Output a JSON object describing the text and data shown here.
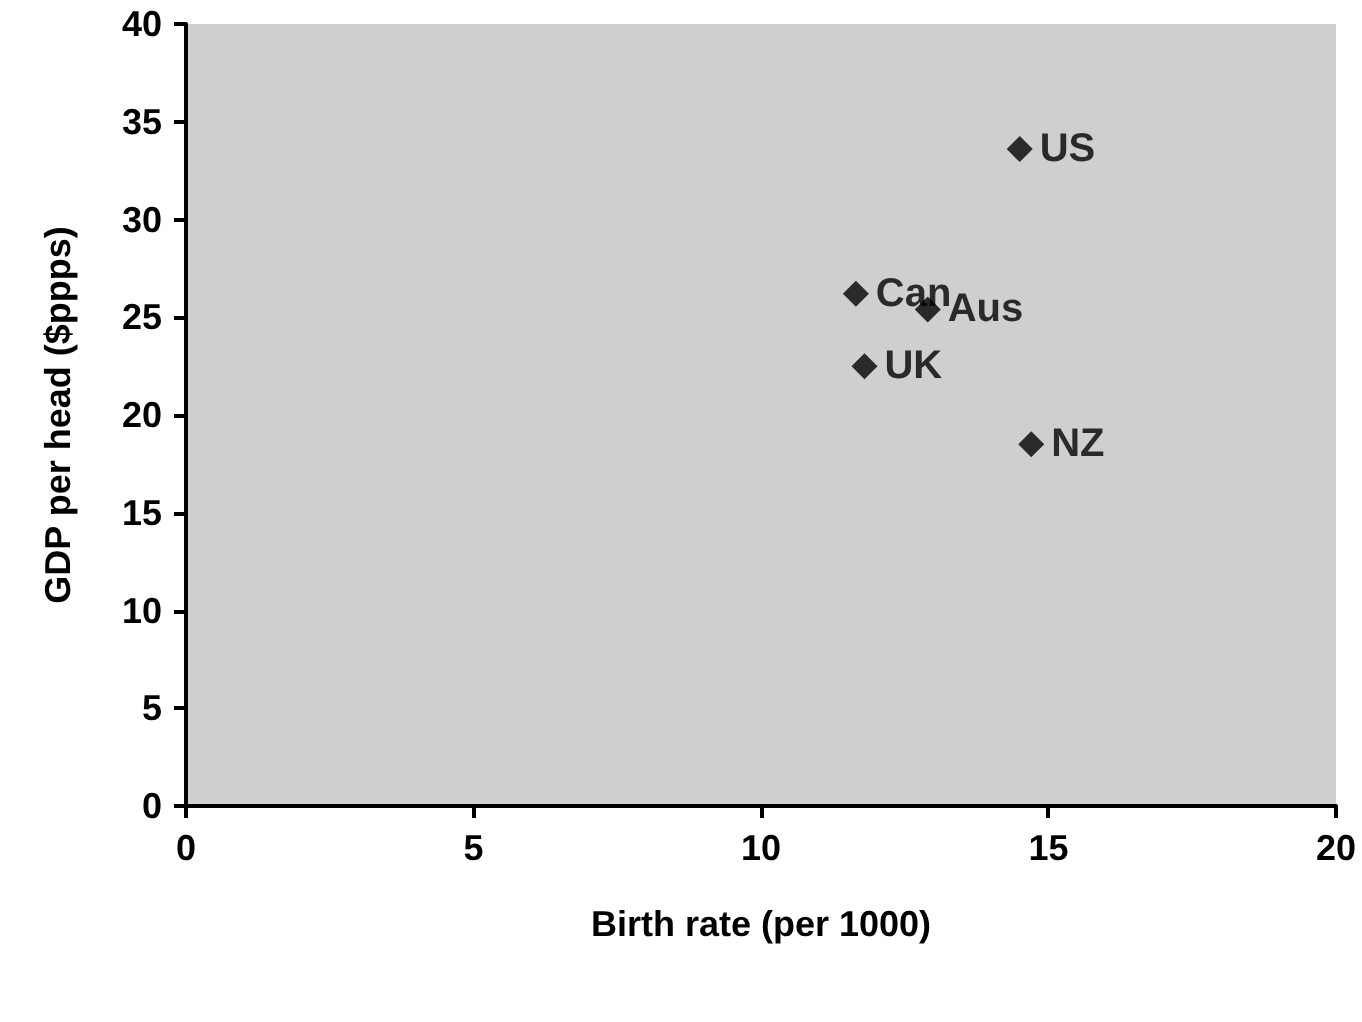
{
  "chart_data": {
    "type": "scatter",
    "xlabel": "Birth rate (per 1000)",
    "ylabel": "GDP per head ($ppps)",
    "x": [
      14.5,
      11.65,
      12.9,
      11.8,
      14.7
    ],
    "series": [
      {
        "color": "#000000",
        "values": [
          33.6,
          26.2,
          25.4,
          22.5,
          18.5
        ]
      }
    ],
    "annotations": [
      {
        "text": "US",
        "x": 14.5,
        "y": 33.6
      },
      {
        "text": "Can",
        "x": 11.65,
        "y": 26.2
      },
      {
        "text": "Aus",
        "x": 12.9,
        "y": 25.4
      },
      {
        "text": "UK",
        "x": 11.8,
        "y": 22.5
      },
      {
        "text": "NZ",
        "x": 14.7,
        "y": 18.5
      }
    ],
    "xlim": [
      0,
      20
    ],
    "xticks": [
      0,
      5,
      10,
      15,
      20
    ],
    "ylim": [
      0,
      40
    ],
    "yticks": [
      0,
      5,
      10,
      15,
      20,
      25,
      30,
      35,
      40
    ],
    "grid": false,
    "marker": "diamond"
  }
}
